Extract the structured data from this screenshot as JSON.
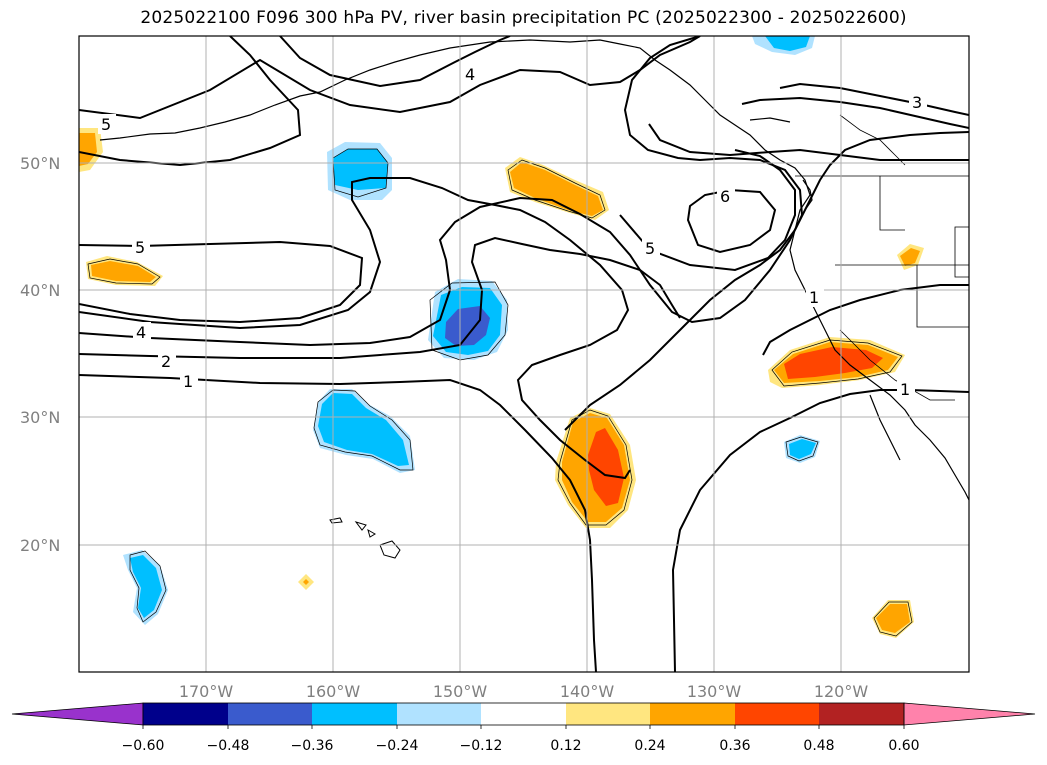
{
  "title": "2025022100 F096 300 hPa PV, river basin precipitation PC (2025022300 - 2025022600)",
  "lat_labels": [
    "50°N",
    "40°N",
    "30°N",
    "20°N"
  ],
  "lon_labels": [
    "170°W",
    "160°W",
    "150°W",
    "140°W",
    "130°W",
    "120°W"
  ],
  "contour_labels": [
    "5",
    "4",
    "3",
    "6",
    "5",
    "5",
    "4",
    "2",
    "1",
    "1",
    "1"
  ],
  "colorbar": {
    "ticks": [
      "−0.60",
      "−0.48",
      "−0.36",
      "−0.24",
      "−0.12",
      "0.12",
      "0.24",
      "0.36",
      "0.48",
      "0.60"
    ],
    "colors": [
      "#9932cc",
      "#00008b",
      "#3a5bcd",
      "#00bfff",
      "#b0e2ff",
      "#ffffff",
      "#ffe680",
      "#ffa500",
      "#ff4500",
      "#b22222",
      "#ff82ab"
    ]
  },
  "colors": {
    "neg_light": "#b0e2ff",
    "neg_mid": "#00bfff",
    "neg_dark": "#3a5bcd",
    "pos_light": "#ffe680",
    "pos_mid": "#ffa500",
    "pos_dark": "#ff4500"
  }
}
